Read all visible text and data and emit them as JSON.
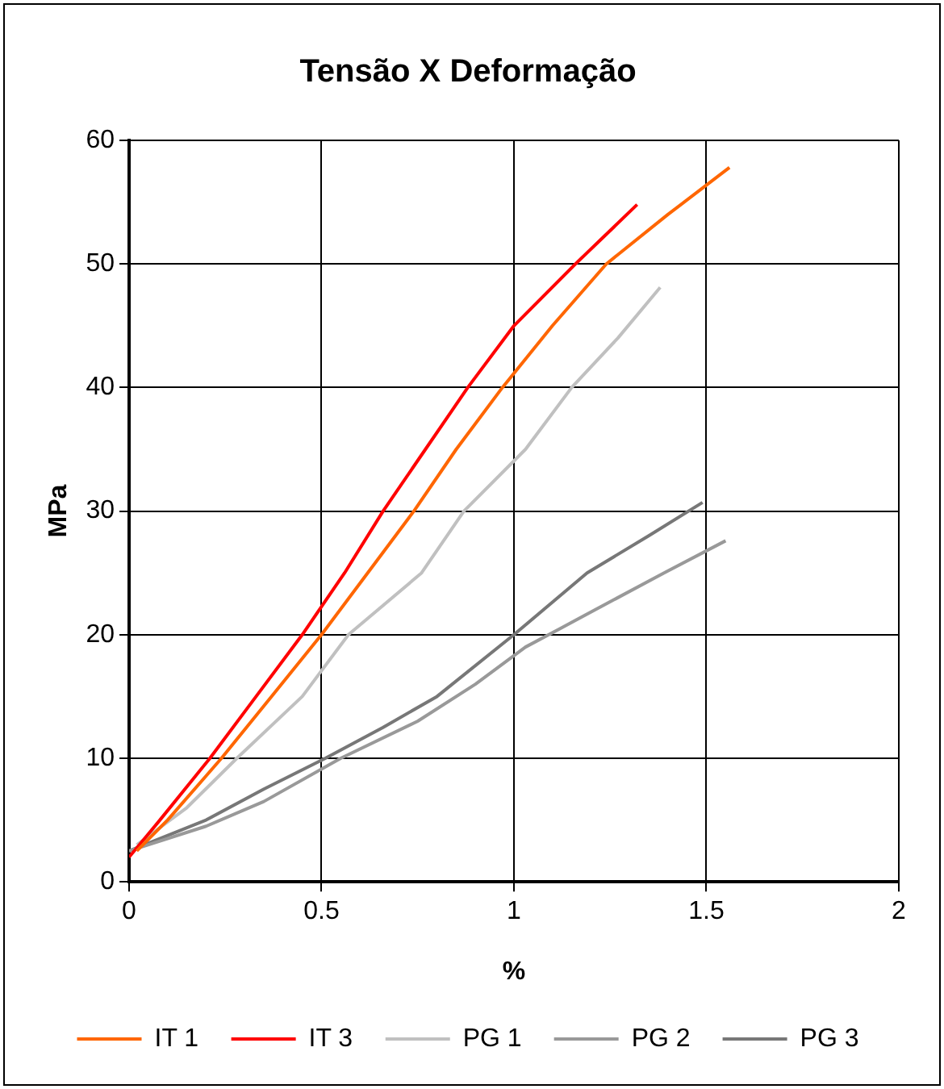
{
  "chart_data": {
    "type": "line",
    "title": "Tensão X Deformação",
    "xlabel": "%",
    "ylabel": "MPa",
    "xlim": [
      0,
      2
    ],
    "xticks": [
      0,
      0.5,
      1,
      1.5,
      2
    ],
    "ylim": [
      0,
      60
    ],
    "yticks": [
      0,
      10,
      20,
      30,
      40,
      50,
      60
    ],
    "grid": true,
    "legend": "bottom",
    "marker": "none",
    "line_style": "solid",
    "series": [
      {
        "name": "IT 1",
        "color": "#ff6600",
        "x": [
          0.02,
          0.1,
          0.24,
          0.37,
          0.5,
          0.62,
          0.74,
          0.85,
          0.97,
          1.1,
          1.24,
          1.4,
          1.56
        ],
        "values": [
          2.5,
          5,
          10,
          15,
          20,
          25,
          30,
          35,
          40,
          45,
          50,
          54,
          57.8
        ]
      },
      {
        "name": "IT 3",
        "color": "#ff0000",
        "x": [
          0,
          0.08,
          0.21,
          0.33,
          0.45,
          0.56,
          0.66,
          0.77,
          0.88,
          1.0,
          1.16,
          1.32
        ],
        "values": [
          2,
          5,
          10,
          15,
          20,
          25,
          30,
          35,
          40,
          45,
          50,
          54.8
        ]
      },
      {
        "name": "PG 1",
        "color": "#c0c0c0",
        "x": [
          0.02,
          0.15,
          0.28,
          0.45,
          0.57,
          0.76,
          0.87,
          1.03,
          1.15,
          1.27,
          1.38
        ],
        "values": [
          3,
          6,
          10,
          15,
          20,
          25,
          30,
          35,
          40,
          44,
          48.1
        ]
      },
      {
        "name": "PG 2",
        "color": "#999999",
        "x": [
          0,
          0.2,
          0.35,
          0.55,
          0.75,
          0.9,
          1.03,
          1.12,
          1.39,
          1.55
        ],
        "values": [
          2.5,
          4.5,
          6.5,
          10,
          13,
          16,
          19,
          20.5,
          25,
          27.6
        ]
      },
      {
        "name": "PG 3",
        "color": "#777777",
        "x": [
          0,
          0.2,
          0.35,
          0.51,
          0.66,
          0.8,
          1.0,
          1.19,
          1.35,
          1.49
        ],
        "values": [
          2.5,
          5,
          7.5,
          10,
          12.5,
          15,
          20,
          25,
          28,
          30.7
        ]
      }
    ]
  }
}
